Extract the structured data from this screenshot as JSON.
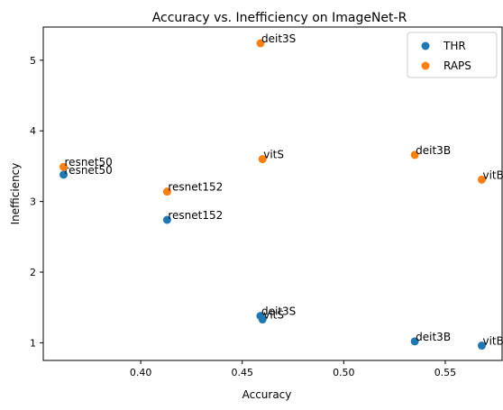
{
  "chart_data": {
    "type": "scatter",
    "title": "Accuracy vs. Inefficiency on ImageNet-R",
    "xlabel": "Accuracy",
    "ylabel": "Inefficiency",
    "xlim": [
      0.352,
      0.578
    ],
    "ylim": [
      0.75,
      5.47
    ],
    "xticks": [
      "0.40",
      "0.45",
      "0.50",
      "0.55"
    ],
    "xtick_values": [
      0.4,
      0.45,
      0.5,
      0.55
    ],
    "yticks": [
      "1",
      "2",
      "3",
      "4",
      "5"
    ],
    "ytick_values": [
      1,
      2,
      3,
      4,
      5
    ],
    "grid": false,
    "legend_position": "upper right",
    "series": [
      {
        "name": "THR",
        "color": "#1f77b4",
        "points": [
          {
            "label": "resnet50",
            "x": 0.362,
            "y": 3.38
          },
          {
            "label": "resnet152",
            "x": 0.413,
            "y": 2.74
          },
          {
            "label": "deit3S",
            "x": 0.459,
            "y": 1.38
          },
          {
            "label": "vitS",
            "x": 0.46,
            "y": 1.33
          },
          {
            "label": "deit3B",
            "x": 0.535,
            "y": 1.02
          },
          {
            "label": "vitB",
            "x": 0.568,
            "y": 0.96
          }
        ]
      },
      {
        "name": "RAPS",
        "color": "#ff7f0e",
        "points": [
          {
            "label": "resnet50",
            "x": 0.362,
            "y": 3.49
          },
          {
            "label": "resnet152",
            "x": 0.413,
            "y": 3.14
          },
          {
            "label": "deit3S",
            "x": 0.459,
            "y": 5.24
          },
          {
            "label": "vitS",
            "x": 0.46,
            "y": 3.6
          },
          {
            "label": "deit3B",
            "x": 0.535,
            "y": 3.66
          },
          {
            "label": "vitB",
            "x": 0.568,
            "y": 3.31
          }
        ]
      }
    ]
  }
}
